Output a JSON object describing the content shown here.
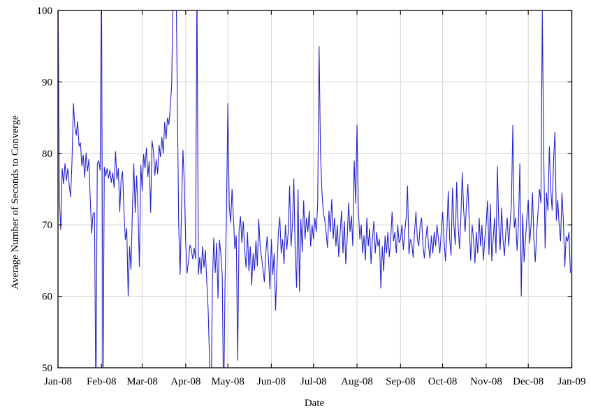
{
  "chart_data": {
    "type": "line",
    "title": "",
    "xlabel": "Date",
    "ylabel": "Average Number of Seconds to Converge",
    "x_tick_labels": [
      "Jan-08",
      "Feb-08",
      "Mar-08",
      "Apr-08",
      "May-08",
      "Jun-08",
      "Jul-08",
      "Aug-08",
      "Sep-08",
      "Oct-08",
      "Nov-08",
      "Dec-08",
      "Jan-09"
    ],
    "x_tick_days": [
      0,
      31,
      60,
      91,
      121,
      152,
      182,
      213,
      244,
      274,
      305,
      335,
      366
    ],
    "x_total_days": 366,
    "y_ticks": [
      50,
      60,
      70,
      80,
      90,
      100
    ],
    "y_tick_labels": [
      "50",
      "60",
      "70",
      "80",
      "90",
      "100"
    ],
    "ylim": [
      50,
      100
    ],
    "grid": true,
    "legend": "none",
    "line_color": "#2424cc",
    "grid_color": "#d4d4d4",
    "border_color": "#111111",
    "x_unit": "day index from 2008-01-01 (leap year, 366 days)",
    "note": "values above 100 or below 50 are clipped at the plot border",
    "series": [
      {
        "name": "average-seconds-to-converge",
        "values": [
          104,
          73.5,
          69.3,
          77.9,
          75.7,
          78.6,
          76.2,
          77.9,
          75.5,
          73.9,
          79.0,
          87.0,
          83.7,
          82.5,
          84.5,
          81.0,
          81.5,
          78.2,
          79.8,
          76.6,
          80.1,
          77.5,
          79.2,
          73.5,
          68.8,
          71.6,
          71.7,
          45.0,
          78.5,
          79.0,
          77.6,
          105.0,
          44.0,
          78.1,
          76.8,
          77.9,
          76.5,
          77.7,
          75.9,
          77.3,
          75.2,
          80.3,
          76.3,
          77.9,
          71.8,
          76.5,
          77.5,
          72.0,
          67.9,
          69.5,
          60.0,
          67.0,
          63.7,
          72.0,
          78.6,
          71.7,
          76.9,
          72.0,
          64.1,
          78.4,
          74.8,
          79.9,
          77.9,
          80.8,
          76.7,
          78.9,
          71.7,
          81.8,
          80.3,
          76.9,
          79.2,
          77.1,
          81.2,
          79.5,
          82.3,
          80.0,
          84.4,
          82.0,
          85.0,
          84.0,
          86.5,
          89.6,
          104.0,
          112.0,
          107.0,
          88.0,
          70.0,
          63.0,
          72.0,
          80.5,
          75.7,
          67.5,
          63.2,
          65.0,
          67.2,
          66.5,
          65.2,
          66.8,
          65.2,
          104.0,
          63.0,
          65.5,
          63.1,
          67.0,
          64.0,
          66.5,
          62.0,
          58.0,
          50.7,
          43.0,
          62.0,
          68.2,
          63.3,
          67.5,
          59.7,
          67.9,
          66.0,
          63.0,
          44.0,
          62.0,
          71.4,
          87.0,
          72.6,
          70.3,
          75.0,
          70.9,
          66.6,
          68.5,
          51.0,
          69.2,
          71.2,
          67.5,
          70.5,
          66.5,
          64.0,
          69.0,
          63.5,
          67.0,
          61.5,
          66.0,
          63.6,
          67.8,
          64.2,
          70.8,
          67.0,
          65.5,
          63.8,
          62.0,
          66.0,
          68.4,
          65.0,
          61.0,
          68.0,
          63.0,
          66.0,
          58.0,
          64.0,
          69.0,
          71.1,
          66.0,
          68.0,
          64.5,
          70.0,
          66.5,
          69.0,
          75.5,
          67.0,
          70.0,
          76.5,
          66.0,
          61.2,
          75.0,
          60.7,
          70.8,
          66.2,
          73.4,
          68.0,
          71.0,
          69.0,
          72.0,
          67.0,
          70.0,
          68.0,
          71.0,
          69.0,
          73.0,
          95.0,
          80.0,
          74.7,
          71.7,
          70.8,
          68.9,
          66.8,
          72.0,
          69.0,
          73.6,
          68.0,
          71.0,
          67.0,
          70.0,
          65.5,
          69.0,
          72.0,
          66.0,
          70.5,
          64.5,
          68.0,
          73.1,
          69.0,
          71.3,
          67.0,
          79.0,
          73.0,
          84.0,
          72.0,
          68.0,
          70.0,
          66.0,
          68.5,
          65.0,
          71.0,
          67.0,
          69.5,
          64.5,
          68.0,
          70.5,
          66.0,
          69.0,
          67.0,
          68.0,
          61.1,
          67.0,
          63.5,
          68.5,
          66.0,
          69.0,
          65.5,
          68.0,
          71.8,
          67.7,
          69.0,
          66.0,
          70.0,
          67.5,
          68.0,
          70.0,
          66.5,
          69.0,
          71.0,
          75.5,
          65.9,
          68.0,
          67.4,
          65.4,
          69.0,
          71.8,
          68.0,
          67.0,
          70.0,
          71.0,
          67.0,
          65.3,
          68.0,
          69.9,
          67.0,
          65.3,
          68.5,
          66.0,
          69.0,
          67.0,
          70.0,
          68.0,
          66.0,
          69.0,
          71.8,
          68.0,
          64.9,
          69.0,
          74.7,
          68.0,
          65.7,
          75.2,
          70.0,
          67.2,
          76.0,
          70.0,
          66.6,
          71.0,
          77.3,
          72.0,
          69.0,
          73.0,
          75.7,
          70.0,
          65.0,
          70.0,
          68.0,
          64.6,
          69.0,
          66.0,
          71.0,
          67.0,
          70.0,
          65.0,
          68.0,
          70.0,
          73.4,
          65.8,
          72.9,
          64.9,
          68.0,
          71.0,
          66.0,
          78.2,
          70.0,
          66.5,
          72.4,
          68.0,
          65.6,
          69.0,
          71.0,
          67.0,
          70.0,
          73.0,
          84.0,
          69.6,
          71.0,
          66.4,
          70.0,
          78.6,
          60.0,
          71.6,
          64.8,
          68.0,
          71.0,
          73.5,
          67.4,
          70.0,
          74.5,
          68.0,
          64.8,
          69.0,
          72.0,
          75.0,
          73.0,
          100.0,
          80.0,
          66.7,
          74.5,
          72.0,
          81.0,
          75.0,
          72.0,
          79.0,
          83.0,
          70.6,
          73.5,
          70.0,
          67.7,
          74.5,
          70.7,
          64.1,
          68.4,
          67.7,
          69.0,
          63.3
        ]
      }
    ]
  }
}
